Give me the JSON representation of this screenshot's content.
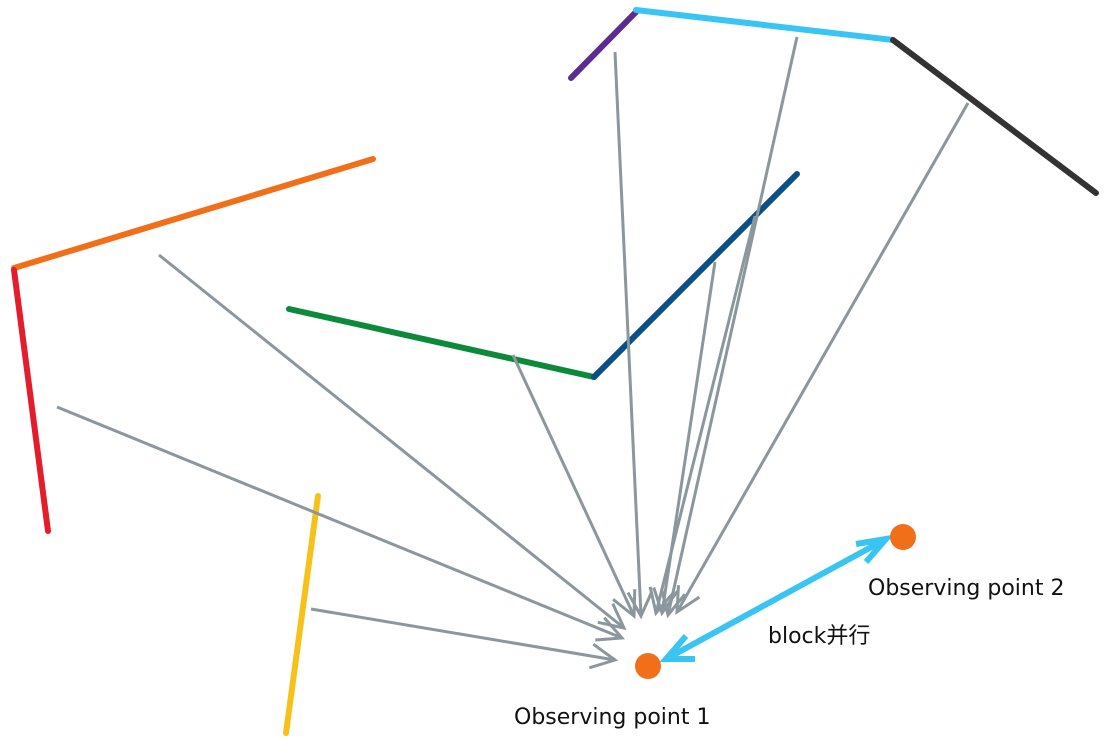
{
  "diagram": {
    "labels": {
      "observing_point_1": "Observing point 1",
      "observing_point_2": "Observing point 2",
      "block_parallel": "block并行"
    },
    "colors": {
      "wall_purple": "#5b2d8f",
      "wall_cyan": "#38c5f3",
      "wall_black": "#333333",
      "wall_orange": "#f26f1a",
      "wall_red": "#e41d2d",
      "wall_green": "#0b8a3a",
      "wall_navy": "#0b4f86",
      "wall_yellow": "#f6c21a",
      "ray": "#8a979d",
      "observing_point": "#f26f1a",
      "block_arrow": "#38c5f3"
    }
  }
}
